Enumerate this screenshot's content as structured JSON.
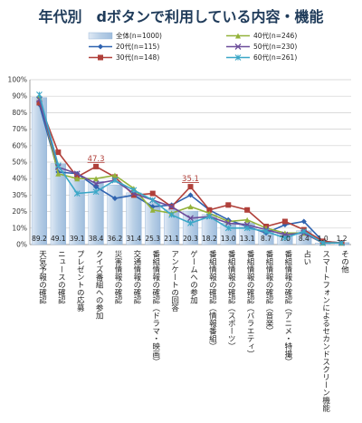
{
  "chart_data": {
    "type": "bar",
    "title": "年代別　dボタンで利用している内容・機能",
    "ylim": [
      0,
      100
    ],
    "y_ticks": [
      "0%",
      "10%",
      "20%",
      "30%",
      "40%",
      "50%",
      "60%",
      "70%",
      "80%",
      "90%",
      "100%"
    ],
    "grid": true,
    "legend_position": "top-right",
    "categories": [
      "天気予報の確認",
      "ニュースの確認",
      "プレゼントの応募",
      "クイズ番組への参加",
      "災害情報の確認",
      "交通情報の確認",
      "番組情報の確認（ドラマ・映画）",
      "アンケートの回答",
      "ゲームへの参加",
      "番組情報の確認（情報番組）",
      "番組情報の確認（スポーツ）",
      "番組情報の確認（バラエティ）",
      "番組情報の確認（音楽）",
      "番組情報の確認（アニメ・特撮）",
      "占い",
      "スマートフォンによるセカンドスクリーン機能",
      "その他"
    ],
    "bar_series": {
      "name": "全体(n=1000)",
      "values": [
        89.2,
        49.1,
        39.1,
        38.4,
        36.2,
        31.4,
        25.3,
        21.1,
        20.3,
        18.2,
        13.0,
        13.1,
        8.7,
        7.0,
        8.4,
        1.0,
        1.2
      ],
      "labels": [
        "89.2",
        "49.1",
        "39.1",
        "38.4",
        "36.2",
        "31.4",
        "25.3",
        "21.1",
        "20.3",
        "18.2",
        "13.0",
        "13.1",
        "8.7",
        "7.0",
        "8.4",
        "1.0",
        "1.2"
      ],
      "color": "#b8cfe6"
    },
    "series": [
      {
        "name": "20代(n=115)",
        "color": "#2f63b0",
        "marker": "diamond",
        "values": [
          85,
          44,
          43,
          35,
          28,
          30,
          23,
          24,
          30,
          21,
          15,
          11,
          7,
          12,
          14,
          2,
          1
        ]
      },
      {
        "name": "30代(n=148)",
        "color": "#b0403a",
        "marker": "square",
        "values": [
          86,
          56,
          41,
          47.3,
          41,
          30,
          31,
          23,
          35.1,
          21,
          24,
          21,
          11,
          14,
          9,
          2,
          1
        ]
      },
      {
        "name": "40代(n=246)",
        "color": "#93b23a",
        "marker": "triangle",
        "values": [
          90,
          43,
          40,
          40,
          42,
          34,
          21,
          19,
          23,
          19,
          14,
          15,
          10,
          7,
          7,
          1,
          1
        ]
      },
      {
        "name": "50代(n=230)",
        "color": "#6c4d9a",
        "marker": "x",
        "values": [
          88,
          47,
          43,
          37,
          39,
          31,
          27,
          23,
          16,
          17,
          13,
          12,
          9,
          6,
          7,
          1,
          1
        ]
      },
      {
        "name": "60代(n=261)",
        "color": "#3ba7c7",
        "marker": "asterisk",
        "values": [
          91,
          48,
          31,
          32,
          39,
          33,
          27,
          18,
          13,
          17,
          10,
          10,
          8,
          4,
          8,
          1,
          1
        ]
      }
    ],
    "annotations": [
      {
        "text": "47.3",
        "category_index": 3,
        "series": "30代(n=148)"
      },
      {
        "text": "35.1",
        "category_index": 8,
        "series": "30代(n=148)"
      }
    ]
  }
}
